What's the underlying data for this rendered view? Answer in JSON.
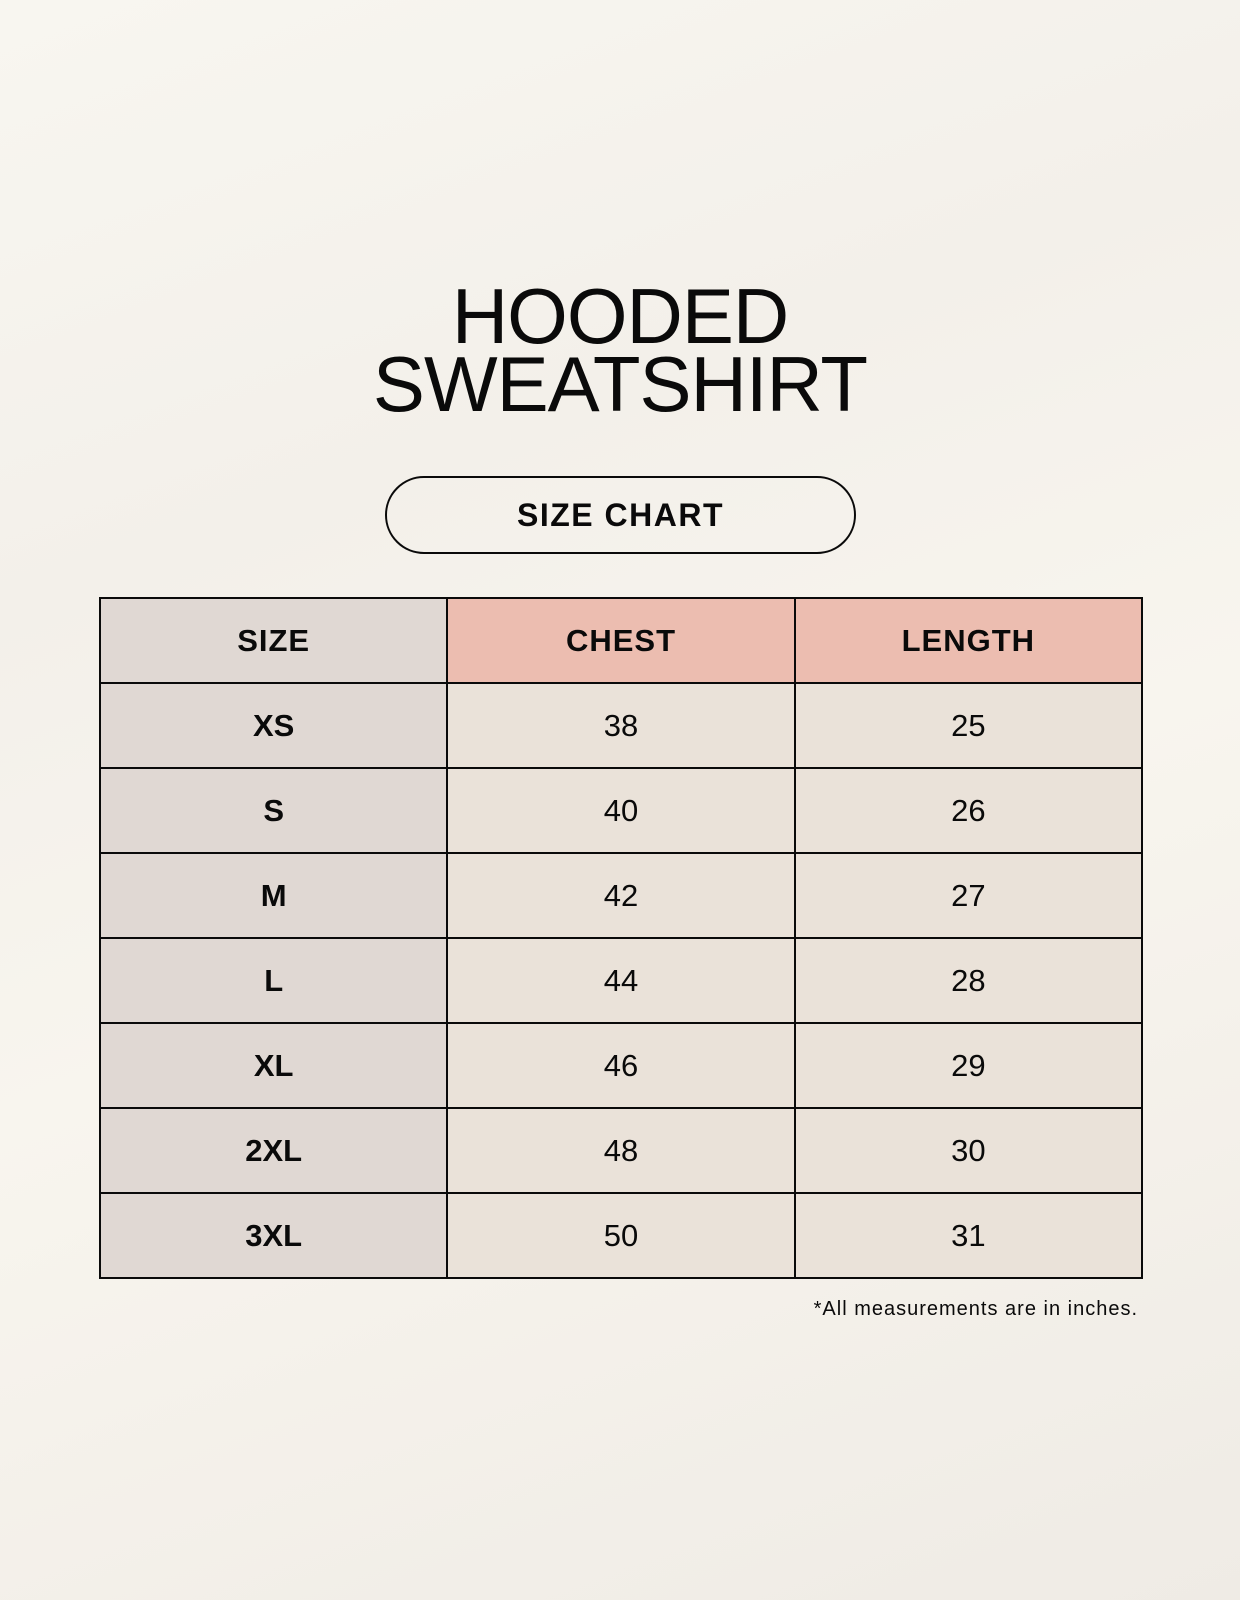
{
  "title": {
    "line1": "HOODED",
    "line2": "SWEATSHIRT"
  },
  "badge": "SIZE CHART",
  "table": {
    "headers": [
      "SIZE",
      "CHEST",
      "LENGTH"
    ],
    "rows": [
      [
        "XS",
        "38",
        "25"
      ],
      [
        "S",
        "40",
        "26"
      ],
      [
        "M",
        "42",
        "27"
      ],
      [
        "L",
        "44",
        "28"
      ],
      [
        "XL",
        "46",
        "29"
      ],
      [
        "2XL",
        "48",
        "30"
      ],
      [
        "3XL",
        "50",
        "31"
      ]
    ]
  },
  "note": "*All measurements are in inches.",
  "colors": {
    "size_column": "#e0d8d3",
    "header_accent": "#ecbdb0",
    "cell": "#eae2d9"
  }
}
